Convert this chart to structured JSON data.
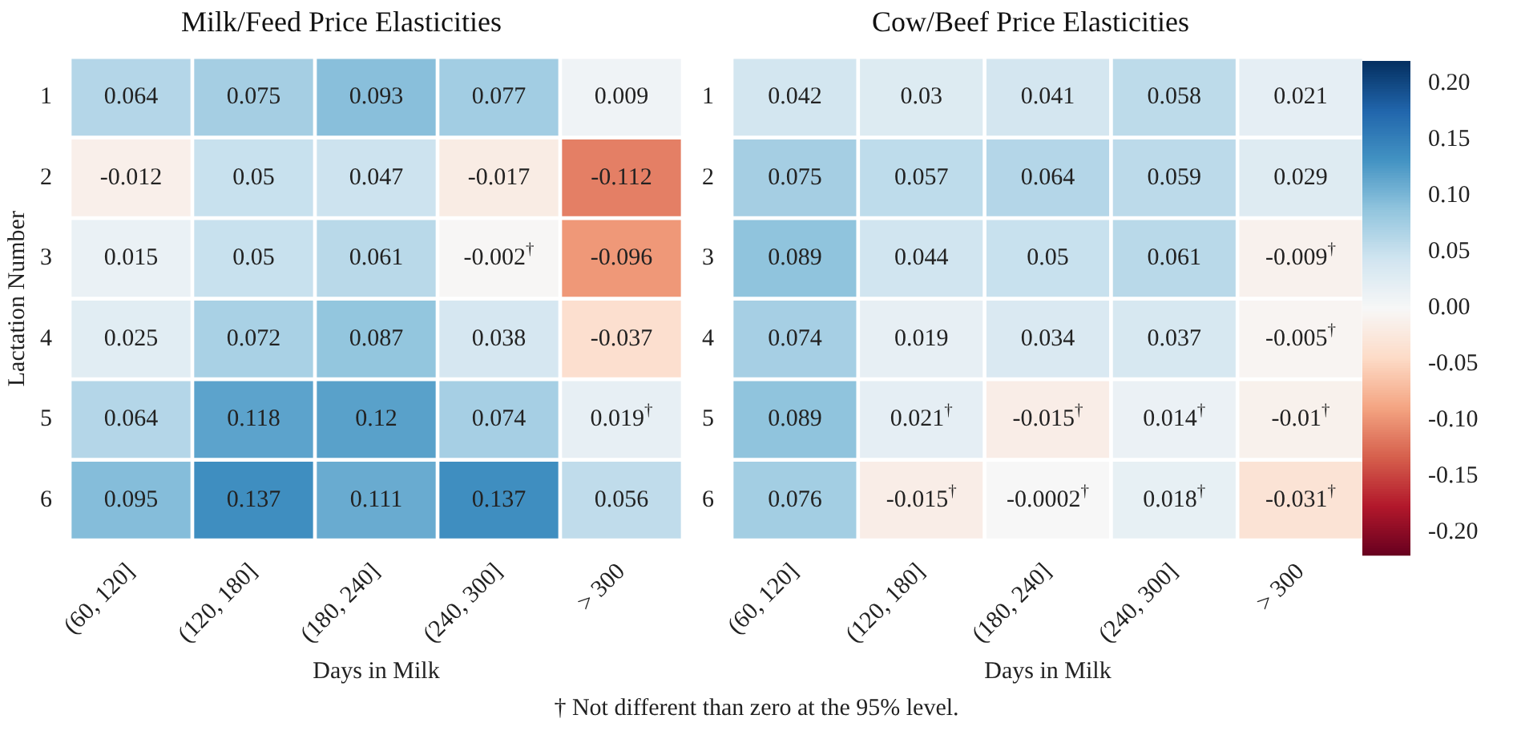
{
  "chart_data": [
    {
      "type": "heatmap",
      "title": "Milk/Feed Price Elasticities",
      "xlabel": "Days in Milk",
      "ylabel": "Lactation Number",
      "categories": [
        "(60, 120]",
        "(120, 180]",
        "(180, 240]",
        "(240, 300]",
        "> 300"
      ],
      "y_categories": [
        "1",
        "2",
        "3",
        "4",
        "5",
        "6"
      ],
      "cells": [
        [
          0.064,
          0.075,
          0.093,
          0.077,
          0.009
        ],
        [
          -0.012,
          0.05,
          0.047,
          -0.017,
          -0.112
        ],
        [
          0.015,
          0.05,
          0.061,
          -0.002,
          -0.096
        ],
        [
          0.025,
          0.072,
          0.087,
          0.038,
          -0.037
        ],
        [
          0.064,
          0.118,
          0.12,
          0.074,
          0.019
        ],
        [
          0.095,
          0.137,
          0.111,
          0.137,
          0.056
        ]
      ],
      "cell_labels": [
        [
          "0.064",
          "0.075",
          "0.093",
          "0.077",
          "0.009"
        ],
        [
          "-0.012",
          "0.05",
          "0.047",
          "-0.017",
          "-0.112"
        ],
        [
          "0.015",
          "0.05",
          "0.061",
          "-0.002$^{†}$",
          "-0.096"
        ],
        [
          "0.025",
          "0.072",
          "0.087",
          "0.038",
          "-0.037"
        ],
        [
          "0.064",
          "0.118",
          "0.12",
          "0.074",
          "0.019$^{†}$"
        ],
        [
          "0.095",
          "0.137",
          "0.111",
          "0.137",
          "0.056"
        ]
      ],
      "data_labels": true,
      "annotations": [
        "† Not different than zero at the 95% level."
      ]
    },
    {
      "type": "heatmap",
      "title": "Cow/Beef Price Elasticities",
      "xlabel": "Days in Milk",
      "categories": [
        "(60, 120]",
        "(120, 180]",
        "(180, 240]",
        "(240, 300]",
        "> 300"
      ],
      "y_categories": [
        "1",
        "2",
        "3",
        "4",
        "5",
        "6"
      ],
      "cells": [
        [
          0.042,
          0.03,
          0.041,
          0.058,
          0.021
        ],
        [
          0.075,
          0.057,
          0.064,
          0.059,
          0.029
        ],
        [
          0.089,
          0.044,
          0.05,
          0.061,
          -0.009
        ],
        [
          0.074,
          0.019,
          0.034,
          0.037,
          -0.005
        ],
        [
          0.089,
          0.021,
          -0.015,
          0.014,
          -0.01
        ],
        [
          0.076,
          -0.015,
          -0.0002,
          0.018,
          -0.031
        ]
      ],
      "cell_labels": [
        [
          "0.042",
          "0.03",
          "0.041",
          "0.058",
          "0.021"
        ],
        [
          "0.075",
          "0.057",
          "0.064",
          "0.059",
          "0.029"
        ],
        [
          "0.089",
          "0.044",
          "0.05",
          "0.061",
          "-0.009$^{†}$"
        ],
        [
          "0.074",
          "0.019",
          "0.034",
          "0.037",
          "-0.005$^{†}$"
        ],
        [
          "0.089",
          "0.021$^{†}$",
          "-0.015$^{†}$",
          "0.014$^{†}$",
          "-0.01$^{†}$"
        ],
        [
          "0.076",
          "-0.015$^{†}$",
          "-0.0002$^{†}$",
          "0.018$^{†}$",
          "-0.031$^{†}$"
        ]
      ],
      "data_labels": true,
      "clim": [
        -0.22,
        0.22
      ],
      "cticks": [
        {
          "value": -0.2,
          "label": "-0.20"
        },
        {
          "value": -0.15,
          "label": "-0.15"
        },
        {
          "value": -0.1,
          "label": "-0.10"
        },
        {
          "value": -0.05,
          "label": "-0.05"
        },
        {
          "value": 0,
          "label": "0.00"
        },
        {
          "value": 0.05,
          "label": "0.05"
        },
        {
          "value": 0.1,
          "label": "0.10"
        },
        {
          "value": 0.15,
          "label": "0.15"
        },
        {
          "value": 0.2,
          "label": "0.20"
        }
      ]
    }
  ]
}
